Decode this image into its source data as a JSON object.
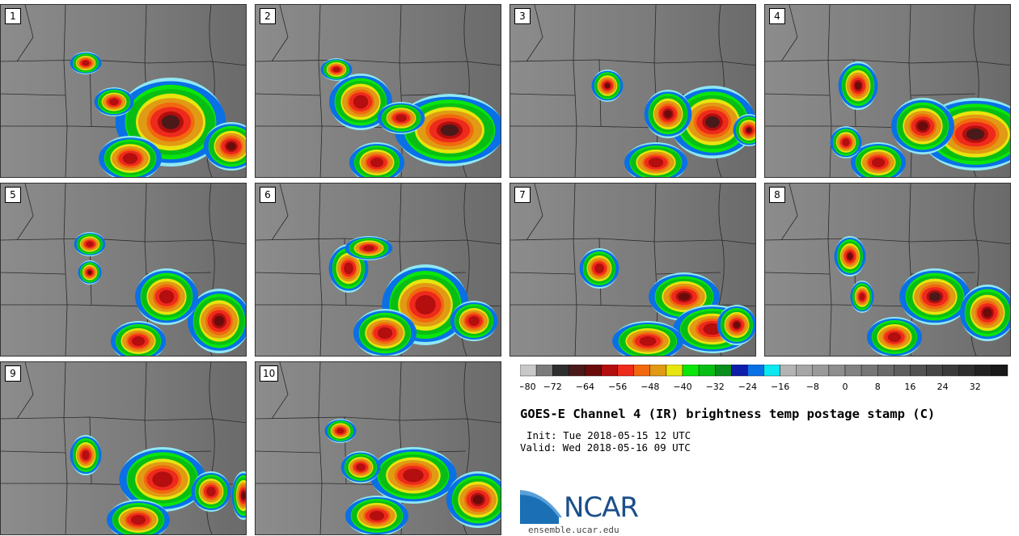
{
  "panels": [
    {
      "label": "1",
      "storms": [
        [
          210,
          145,
          70,
          55,
          2
        ],
        [
          285,
          175,
          35,
          30,
          1
        ],
        [
          160,
          190,
          40,
          28,
          0
        ],
        [
          105,
          72,
          20,
          14,
          0
        ],
        [
          140,
          120,
          25,
          18,
          0
        ]
      ]
    },
    {
      "label": "2",
      "storms": [
        [
          240,
          155,
          70,
          45,
          2
        ],
        [
          130,
          120,
          40,
          35,
          0
        ],
        [
          150,
          195,
          35,
          25,
          0
        ],
        [
          180,
          140,
          30,
          20,
          0
        ],
        [
          100,
          80,
          20,
          14,
          0
        ]
      ]
    },
    {
      "label": "3",
      "storms": [
        [
          250,
          145,
          55,
          45,
          2
        ],
        [
          195,
          135,
          30,
          30,
          1
        ],
        [
          120,
          100,
          20,
          20,
          1
        ],
        [
          180,
          195,
          40,
          25,
          0
        ],
        [
          295,
          155,
          20,
          20,
          1
        ]
      ]
    },
    {
      "label": "4",
      "storms": [
        [
          260,
          160,
          70,
          45,
          2
        ],
        [
          195,
          150,
          40,
          35,
          1
        ],
        [
          115,
          100,
          25,
          30,
          1
        ],
        [
          140,
          195,
          35,
          25,
          0
        ],
        [
          100,
          170,
          20,
          20,
          0
        ]
      ]
    },
    {
      "label": "5",
      "storms": [
        [
          270,
          170,
          40,
          40,
          1
        ],
        [
          205,
          140,
          40,
          35,
          0
        ],
        [
          170,
          195,
          35,
          25,
          0
        ],
        [
          110,
          110,
          15,
          15,
          1
        ],
        [
          110,
          75,
          20,
          15,
          0
        ]
      ]
    },
    {
      "label": "6",
      "storms": [
        [
          210,
          150,
          55,
          50,
          0
        ],
        [
          115,
          105,
          25,
          30,
          0
        ],
        [
          160,
          185,
          40,
          30,
          0
        ],
        [
          270,
          170,
          30,
          25,
          0
        ],
        [
          140,
          80,
          30,
          15,
          0
        ]
      ]
    },
    {
      "label": "7",
      "storms": [
        [
          215,
          140,
          45,
          30,
          1
        ],
        [
          250,
          180,
          50,
          30,
          0
        ],
        [
          110,
          105,
          25,
          25,
          0
        ],
        [
          170,
          195,
          45,
          25,
          0
        ],
        [
          280,
          175,
          25,
          25,
          1
        ]
      ]
    },
    {
      "label": "8",
      "storms": [
        [
          210,
          140,
          45,
          35,
          2
        ],
        [
          275,
          160,
          35,
          35,
          1
        ],
        [
          105,
          90,
          20,
          25,
          1
        ],
        [
          160,
          190,
          35,
          25,
          0
        ],
        [
          120,
          140,
          15,
          20,
          0
        ]
      ]
    },
    {
      "label": "9",
      "storms": [
        [
          200,
          145,
          55,
          40,
          0
        ],
        [
          105,
          115,
          20,
          25,
          0
        ],
        [
          170,
          195,
          40,
          25,
          0
        ],
        [
          260,
          160,
          25,
          25,
          0
        ],
        [
          300,
          165,
          15,
          30,
          1
        ]
      ]
    },
    {
      "label": "10",
      "storms": [
        [
          195,
          140,
          55,
          35,
          0
        ],
        [
          275,
          170,
          40,
          35,
          1
        ],
        [
          105,
          85,
          20,
          15,
          0
        ],
        [
          150,
          190,
          40,
          25,
          0
        ],
        [
          130,
          130,
          25,
          20,
          0
        ]
      ]
    }
  ],
  "colorbar": {
    "colors": [
      "#c8c8c8",
      "#7b7b7b",
      "#2e2e2e",
      "#4a1a1a",
      "#6a0c0c",
      "#b40e0e",
      "#ee2a1c",
      "#f2680e",
      "#e09a14",
      "#e8e40e",
      "#0ae60a",
      "#08be14",
      "#0a8e1c",
      "#0e1ea8",
      "#0a70e6",
      "#0ae8f0",
      "#b4b4b4",
      "#a6a6a6",
      "#9a9a9a",
      "#8e8e8e",
      "#828282",
      "#767676",
      "#6a6a6a",
      "#5e5e5e",
      "#525252",
      "#464646",
      "#3a3a3a",
      "#2e2e2e",
      "#222222",
      "#181818"
    ],
    "ticks": [
      "−80",
      "−72",
      "−64",
      "−56",
      "−48",
      "−40",
      "−32",
      "−24",
      "−16",
      "−8",
      "0",
      "8",
      "16",
      "24",
      "32"
    ]
  },
  "title": "GOES-E Channel 4 (IR) brightness temp postage stamp (C)",
  "init_line": "Init: Tue 2018-05-15 12 UTC",
  "valid_line": "Valid: Wed 2018-05-16 09 UTC",
  "logo": {
    "text": "NCAR",
    "color": "#1b4f8a"
  },
  "website": "ensemble.ucar.edu"
}
